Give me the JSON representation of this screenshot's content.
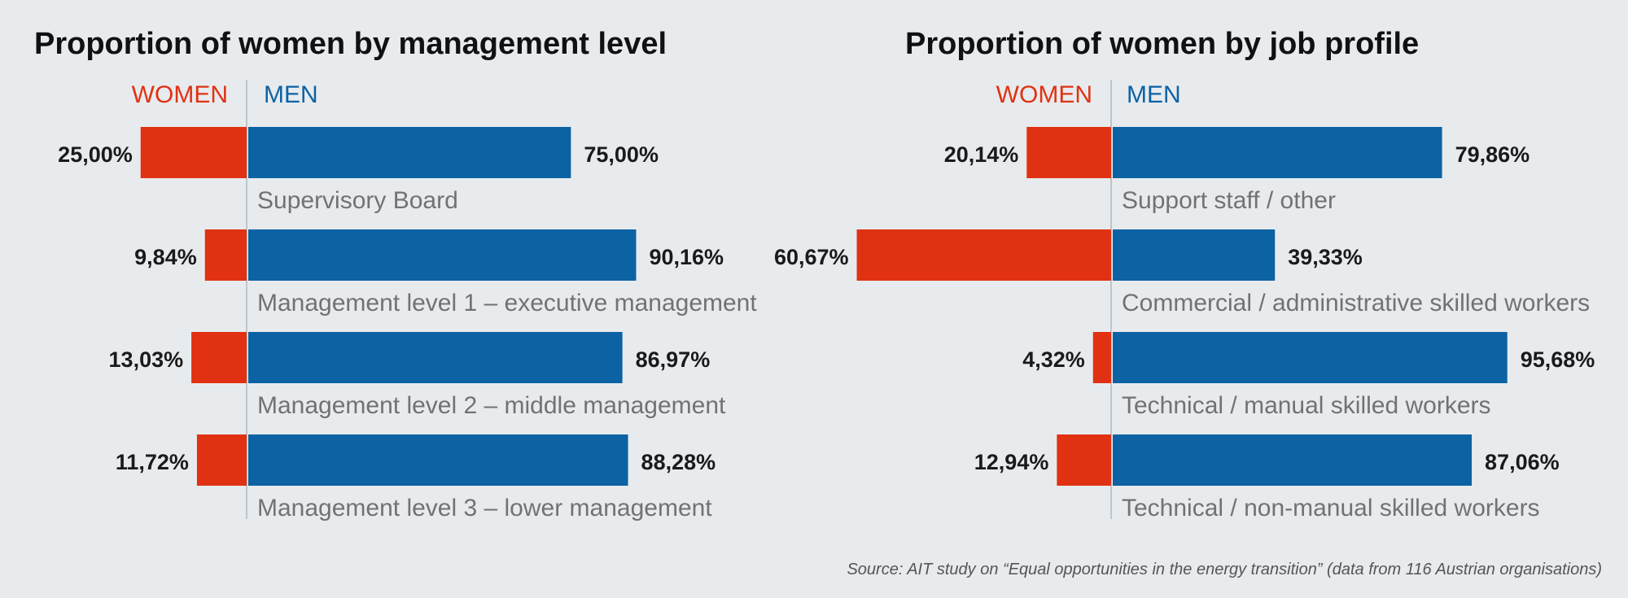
{
  "source": "Source: AIT study on “Equal opportunities in the energy transition” (data from 116 Austrian organisations)",
  "colors": {
    "women": "#e03212",
    "men": "#0d62a4",
    "divider": "#bfc5cb",
    "background": "#e8ebee"
  },
  "chart_data": [
    {
      "type": "bar",
      "orientation": "horizontal-diverging",
      "title": "Proportion of women by management level",
      "legend": [
        "WOMEN",
        "MEN"
      ],
      "categories": [
        "Supervisory Board",
        "Management level 1 – executive management",
        "Management level 2 – middle management",
        "Management level 3 – lower management"
      ],
      "series": [
        {
          "name": "WOMEN",
          "values": [
            25.0,
            9.84,
            13.03,
            11.72
          ],
          "labels": [
            "25,00%",
            "9,84%",
            "13,03%",
            "11,72%"
          ]
        },
        {
          "name": "MEN",
          "values": [
            75.0,
            90.16,
            86.97,
            88.28
          ],
          "labels": [
            "75,00%",
            "90,16%",
            "86,97%",
            "88,28%"
          ]
        }
      ]
    },
    {
      "type": "bar",
      "orientation": "horizontal-diverging",
      "title": "Proportion of women by job profile",
      "legend": [
        "WOMEN",
        "MEN"
      ],
      "categories": [
        "Support staff / other",
        "Commercial / administrative skilled workers",
        "Technical / manual skilled workers",
        "Technical / non-manual skilled workers"
      ],
      "series": [
        {
          "name": "WOMEN",
          "values": [
            20.14,
            60.67,
            4.32,
            12.94
          ],
          "labels": [
            "20,14%",
            "60,67%",
            "4,32%",
            "12,94%"
          ]
        },
        {
          "name": "MEN",
          "values": [
            79.86,
            39.33,
            95.68,
            87.06
          ],
          "labels": [
            "79,86%",
            "39,33%",
            "95,68%",
            "87,06%"
          ]
        }
      ]
    }
  ]
}
